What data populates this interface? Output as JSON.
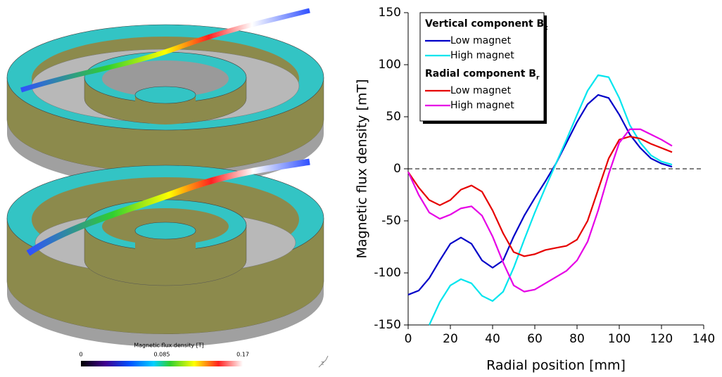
{
  "chart_data": {
    "type": "line",
    "xlabel": "Radial position [mm]",
    "ylabel": "Magnetic flux density [mT]",
    "x": [
      0,
      5,
      10,
      15,
      20,
      25,
      30,
      35,
      40,
      45,
      50,
      55,
      60,
      65,
      70,
      75,
      80,
      85,
      90,
      95,
      100,
      105,
      110,
      115,
      120,
      125
    ],
    "series": [
      {
        "name": "Low magnet",
        "color": "#0000c8",
        "values": [
          -121,
          -117,
          -105,
          -88,
          -72,
          -66,
          -72,
          -88,
          -95,
          -88,
          -65,
          -45,
          -28,
          -12,
          5,
          25,
          45,
          62,
          71,
          68,
          52,
          33,
          20,
          10,
          5,
          2
        ]
      },
      {
        "name": "High magnet",
        "color": "#00e5ee",
        "values": [
          null,
          null,
          -150,
          -128,
          -112,
          -106,
          -110,
          -122,
          -127,
          -118,
          -95,
          -68,
          -42,
          -18,
          5,
          28,
          52,
          75,
          90,
          88,
          68,
          42,
          25,
          13,
          7,
          4
        ]
      },
      {
        "name": "Low magnet",
        "color": "#e60000",
        "values": [
          -3,
          -18,
          -30,
          -35,
          -30,
          -20,
          -16,
          -22,
          -40,
          -62,
          -80,
          -84,
          -82,
          -78,
          -76,
          -74,
          -68,
          -50,
          -20,
          10,
          28,
          31,
          29,
          24,
          20,
          16
        ]
      },
      {
        "name": "High magnet",
        "color": "#e600e6",
        "values": [
          -3,
          -25,
          -42,
          -48,
          -44,
          -38,
          -36,
          -45,
          -65,
          -90,
          -112,
          -118,
          -116,
          -110,
          -104,
          -98,
          -88,
          -70,
          -40,
          -5,
          25,
          38,
          38,
          33,
          28,
          22
        ]
      }
    ],
    "legend_groups": [
      {
        "title": "Vertical component B",
        "subscript": "z"
      },
      {
        "title": "Radial component B",
        "subscript": "r"
      }
    ],
    "reference_line": {
      "y": 0,
      "style": "dashed"
    },
    "xlim": [
      0,
      140
    ],
    "xticks": [
      0,
      20,
      40,
      60,
      80,
      100,
      120,
      140
    ],
    "ylim": [
      -150,
      150
    ],
    "yticks": [
      -150,
      -100,
      -50,
      0,
      50,
      100,
      150
    ],
    "grid": false
  },
  "colorbar": {
    "title": "Magnetic flux density [T]",
    "labels": [
      "0",
      "0.085",
      "0.17"
    ]
  },
  "axis_icon": {
    "label": "z"
  }
}
